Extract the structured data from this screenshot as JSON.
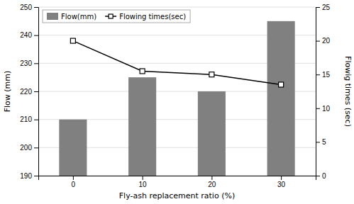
{
  "chart_data": {
    "type": "bar",
    "xlabel": "Fly-ash replacement ratio (%)",
    "ylabel": "Flow (mm)",
    "y2label": "Flowig times (sec)",
    "x": [
      0,
      10,
      20,
      30
    ],
    "xlim": [
      -5,
      35
    ],
    "xticks": [
      0,
      10,
      20,
      30
    ],
    "ylim": [
      190,
      250
    ],
    "yticks": [
      190,
      200,
      210,
      220,
      230,
      240,
      250
    ],
    "y2lim": [
      0,
      25
    ],
    "y2ticks": [
      0,
      5,
      10,
      15,
      20,
      25
    ],
    "series": [
      {
        "name": "Flow(mm)",
        "type": "bar",
        "color": "#808080",
        "values": [
          210,
          225,
          220,
          245
        ]
      },
      {
        "name": "Flowing times(sec)",
        "type": "line",
        "color": "#000000",
        "marker": "square",
        "axis": "y2",
        "values": [
          20.0,
          15.5,
          15.0,
          13.5
        ]
      }
    ],
    "grid": true,
    "legend": "upper left"
  }
}
